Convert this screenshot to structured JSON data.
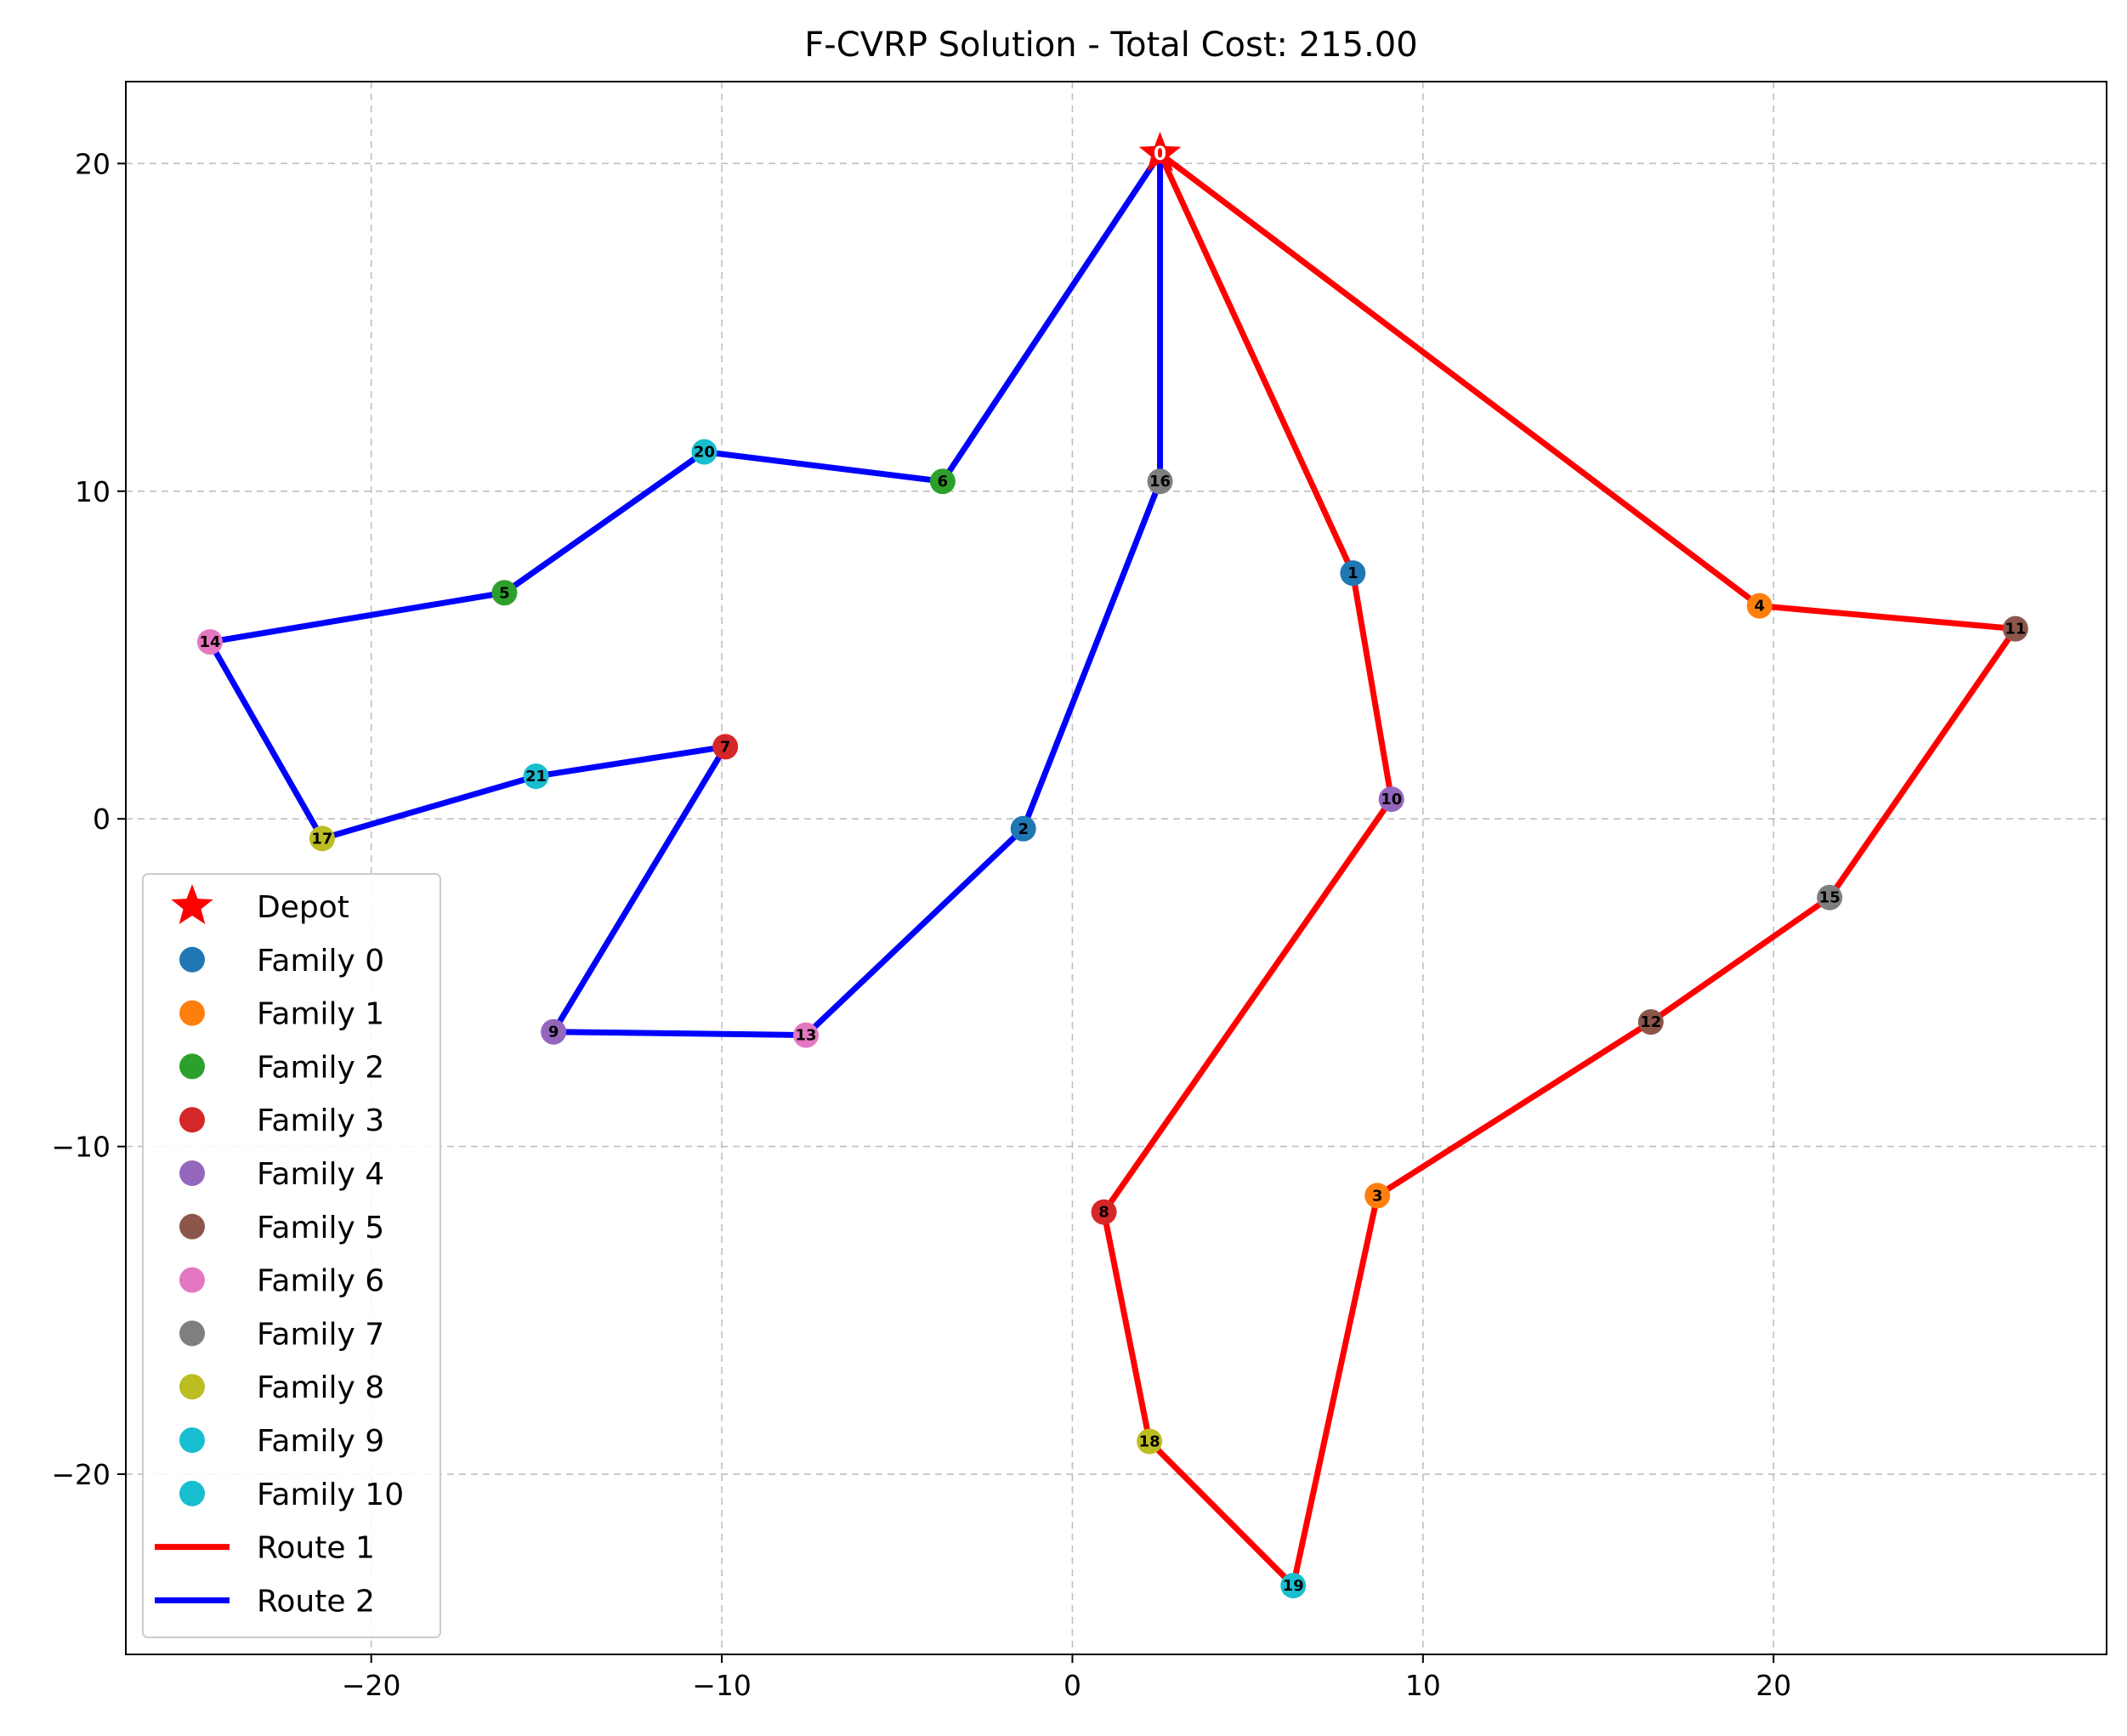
{
  "chart_data": {
    "type": "scatter",
    "title": "F-CVRP Solution - Total Cost: 215.00",
    "xlabel": "",
    "ylabel": "",
    "xlim": [
      -27,
      29.5
    ],
    "ylim": [
      -25.5,
      22.5
    ],
    "xticks": [
      -20,
      -10,
      0,
      10,
      20
    ],
    "yticks": [
      -20,
      -10,
      0,
      10,
      20
    ],
    "xtick_labels": [
      "−20",
      "−10",
      "0",
      "10",
      "20"
    ],
    "ytick_labels": [
      "−20",
      "−10",
      "0",
      "10",
      "20"
    ],
    "grid": true,
    "legend_position": "lower-left",
    "depot": {
      "id": 0,
      "label": "0",
      "x": 2.5,
      "y": 20.3,
      "color": "#ff0000",
      "name": "Depot"
    },
    "nodes": [
      {
        "id": 1,
        "label": "1",
        "x": 8.0,
        "y": 7.5,
        "family": 0
      },
      {
        "id": 2,
        "label": "2",
        "x": -1.4,
        "y": -0.3,
        "family": 0
      },
      {
        "id": 3,
        "label": "3",
        "x": 8.7,
        "y": -11.5,
        "family": 1
      },
      {
        "id": 4,
        "label": "4",
        "x": 19.6,
        "y": 6.5,
        "family": 1
      },
      {
        "id": 5,
        "label": "5",
        "x": -16.2,
        "y": 6.9,
        "family": 2
      },
      {
        "id": 6,
        "label": "6",
        "x": -3.7,
        "y": 10.3,
        "family": 2
      },
      {
        "id": 7,
        "label": "7",
        "x": -9.9,
        "y": 2.2,
        "family": 3
      },
      {
        "id": 8,
        "label": "8",
        "x": 0.9,
        "y": -12.0,
        "family": 3
      },
      {
        "id": 9,
        "label": "9",
        "x": -14.8,
        "y": -6.5,
        "family": 4
      },
      {
        "id": 10,
        "label": "10",
        "x": 9.1,
        "y": 0.6,
        "family": 4
      },
      {
        "id": 11,
        "label": "11",
        "x": 26.9,
        "y": 5.8,
        "family": 5
      },
      {
        "id": 12,
        "label": "12",
        "x": 16.5,
        "y": -6.2,
        "family": 5
      },
      {
        "id": 13,
        "label": "13",
        "x": -7.6,
        "y": -6.6,
        "family": 6
      },
      {
        "id": 14,
        "label": "14",
        "x": -24.6,
        "y": 5.4,
        "family": 6
      },
      {
        "id": 15,
        "label": "15",
        "x": 21.6,
        "y": -2.4,
        "family": 7
      },
      {
        "id": 16,
        "label": "16",
        "x": 2.5,
        "y": 10.3,
        "family": 7
      },
      {
        "id": 17,
        "label": "17",
        "x": -21.4,
        "y": -0.6,
        "family": 8
      },
      {
        "id": 18,
        "label": "18",
        "x": 2.2,
        "y": -19.0,
        "family": 8
      },
      {
        "id": 19,
        "label": "19",
        "x": 6.3,
        "y": -23.4,
        "family": 9
      },
      {
        "id": 20,
        "label": "20",
        "x": -10.5,
        "y": 11.2,
        "family": 9
      },
      {
        "id": 21,
        "label": "21",
        "x": -15.3,
        "y": 1.3,
        "family": 10
      }
    ],
    "families": [
      {
        "name": "Family 0",
        "color": "#1f77b4"
      },
      {
        "name": "Family 1",
        "color": "#ff7f0e"
      },
      {
        "name": "Family 2",
        "color": "#2ca02c"
      },
      {
        "name": "Family 3",
        "color": "#d62728"
      },
      {
        "name": "Family 4",
        "color": "#9467bd"
      },
      {
        "name": "Family 5",
        "color": "#8c564b"
      },
      {
        "name": "Family 6",
        "color": "#e377c2"
      },
      {
        "name": "Family 7",
        "color": "#7f7f7f"
      },
      {
        "name": "Family 8",
        "color": "#bcbd22"
      },
      {
        "name": "Family 9",
        "color": "#17becf"
      },
      {
        "name": "Family 10",
        "color": "#17becf"
      }
    ],
    "routes": [
      {
        "name": "Route 1",
        "color": "#ff0000",
        "path": [
          0,
          1,
          10,
          8,
          18,
          19,
          3,
          12,
          15,
          11,
          4,
          0
        ]
      },
      {
        "name": "Route 2",
        "color": "#0000ff",
        "path": [
          0,
          16,
          2,
          13,
          9,
          7,
          21,
          17,
          14,
          5,
          20,
          6,
          0
        ]
      }
    ],
    "legend": [
      "Depot",
      "Family 0",
      "Family 1",
      "Family 2",
      "Family 3",
      "Family 4",
      "Family 5",
      "Family 6",
      "Family 7",
      "Family 8",
      "Family 9",
      "Family 10",
      "Route 1",
      "Route 2"
    ]
  }
}
